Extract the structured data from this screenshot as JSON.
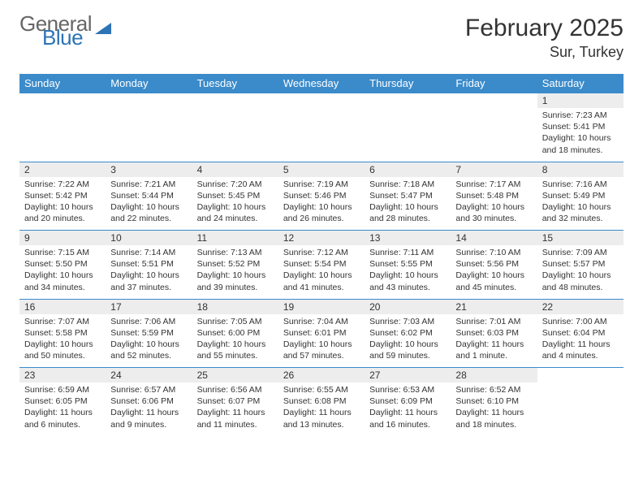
{
  "brand": {
    "word1": "General",
    "word2": "Blue"
  },
  "title": "February 2025",
  "location": "Sur, Turkey",
  "colors": {
    "header_bg": "#3b8bca",
    "header_text": "#ffffff",
    "daynum_bg": "#ededed",
    "border": "#3b8bca",
    "brand_blue": "#2e74b5",
    "text": "#333333"
  },
  "columns": [
    "Sunday",
    "Monday",
    "Tuesday",
    "Wednesday",
    "Thursday",
    "Friday",
    "Saturday"
  ],
  "weeks": [
    [
      null,
      null,
      null,
      null,
      null,
      null,
      {
        "d": "1",
        "sr": "7:23 AM",
        "ss": "5:41 PM",
        "dl": "10 hours and 18 minutes."
      }
    ],
    [
      {
        "d": "2",
        "sr": "7:22 AM",
        "ss": "5:42 PM",
        "dl": "10 hours and 20 minutes."
      },
      {
        "d": "3",
        "sr": "7:21 AM",
        "ss": "5:44 PM",
        "dl": "10 hours and 22 minutes."
      },
      {
        "d": "4",
        "sr": "7:20 AM",
        "ss": "5:45 PM",
        "dl": "10 hours and 24 minutes."
      },
      {
        "d": "5",
        "sr": "7:19 AM",
        "ss": "5:46 PM",
        "dl": "10 hours and 26 minutes."
      },
      {
        "d": "6",
        "sr": "7:18 AM",
        "ss": "5:47 PM",
        "dl": "10 hours and 28 minutes."
      },
      {
        "d": "7",
        "sr": "7:17 AM",
        "ss": "5:48 PM",
        "dl": "10 hours and 30 minutes."
      },
      {
        "d": "8",
        "sr": "7:16 AM",
        "ss": "5:49 PM",
        "dl": "10 hours and 32 minutes."
      }
    ],
    [
      {
        "d": "9",
        "sr": "7:15 AM",
        "ss": "5:50 PM",
        "dl": "10 hours and 34 minutes."
      },
      {
        "d": "10",
        "sr": "7:14 AM",
        "ss": "5:51 PM",
        "dl": "10 hours and 37 minutes."
      },
      {
        "d": "11",
        "sr": "7:13 AM",
        "ss": "5:52 PM",
        "dl": "10 hours and 39 minutes."
      },
      {
        "d": "12",
        "sr": "7:12 AM",
        "ss": "5:54 PM",
        "dl": "10 hours and 41 minutes."
      },
      {
        "d": "13",
        "sr": "7:11 AM",
        "ss": "5:55 PM",
        "dl": "10 hours and 43 minutes."
      },
      {
        "d": "14",
        "sr": "7:10 AM",
        "ss": "5:56 PM",
        "dl": "10 hours and 45 minutes."
      },
      {
        "d": "15",
        "sr": "7:09 AM",
        "ss": "5:57 PM",
        "dl": "10 hours and 48 minutes."
      }
    ],
    [
      {
        "d": "16",
        "sr": "7:07 AM",
        "ss": "5:58 PM",
        "dl": "10 hours and 50 minutes."
      },
      {
        "d": "17",
        "sr": "7:06 AM",
        "ss": "5:59 PM",
        "dl": "10 hours and 52 minutes."
      },
      {
        "d": "18",
        "sr": "7:05 AM",
        "ss": "6:00 PM",
        "dl": "10 hours and 55 minutes."
      },
      {
        "d": "19",
        "sr": "7:04 AM",
        "ss": "6:01 PM",
        "dl": "10 hours and 57 minutes."
      },
      {
        "d": "20",
        "sr": "7:03 AM",
        "ss": "6:02 PM",
        "dl": "10 hours and 59 minutes."
      },
      {
        "d": "21",
        "sr": "7:01 AM",
        "ss": "6:03 PM",
        "dl": "11 hours and 1 minute."
      },
      {
        "d": "22",
        "sr": "7:00 AM",
        "ss": "6:04 PM",
        "dl": "11 hours and 4 minutes."
      }
    ],
    [
      {
        "d": "23",
        "sr": "6:59 AM",
        "ss": "6:05 PM",
        "dl": "11 hours and 6 minutes."
      },
      {
        "d": "24",
        "sr": "6:57 AM",
        "ss": "6:06 PM",
        "dl": "11 hours and 9 minutes."
      },
      {
        "d": "25",
        "sr": "6:56 AM",
        "ss": "6:07 PM",
        "dl": "11 hours and 11 minutes."
      },
      {
        "d": "26",
        "sr": "6:55 AM",
        "ss": "6:08 PM",
        "dl": "11 hours and 13 minutes."
      },
      {
        "d": "27",
        "sr": "6:53 AM",
        "ss": "6:09 PM",
        "dl": "11 hours and 16 minutes."
      },
      {
        "d": "28",
        "sr": "6:52 AM",
        "ss": "6:10 PM",
        "dl": "11 hours and 18 minutes."
      },
      null
    ]
  ],
  "labels": {
    "sunrise": "Sunrise:",
    "sunset": "Sunset:",
    "daylight": "Daylight:"
  }
}
